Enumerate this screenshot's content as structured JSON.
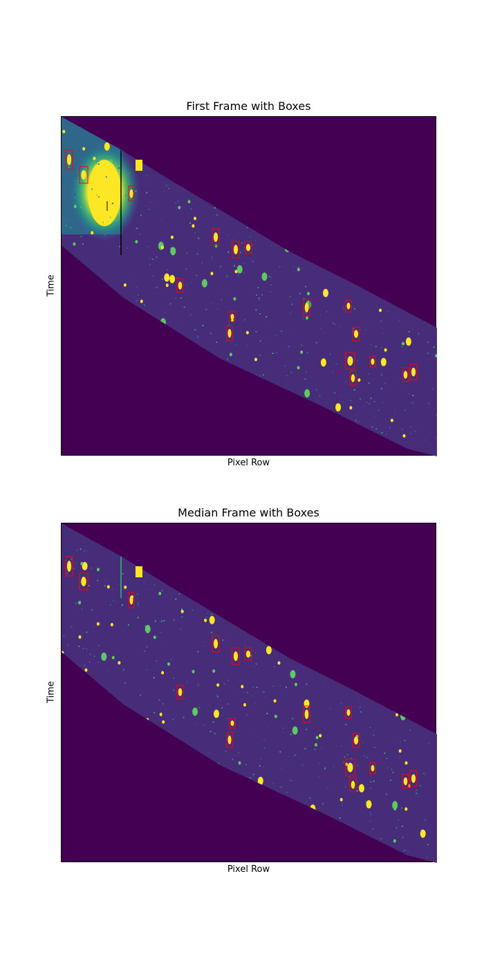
{
  "chart_data": [
    {
      "type": "heatmap",
      "title": "First Frame with Boxes",
      "xlabel": "Pixel Row",
      "ylabel": "Time",
      "colormap": "viridis",
      "background_color": "#440154",
      "box_color": "#ff0000",
      "ticks": false,
      "has_bright_saturated_source": true
    },
    {
      "type": "heatmap",
      "title": "Median Frame with Boxes",
      "xlabel": "Pixel Row",
      "ylabel": "Time",
      "colormap": "viridis",
      "background_color": "#440154",
      "box_color": "#ff0000",
      "ticks": false,
      "has_bright_saturated_source": false
    }
  ]
}
